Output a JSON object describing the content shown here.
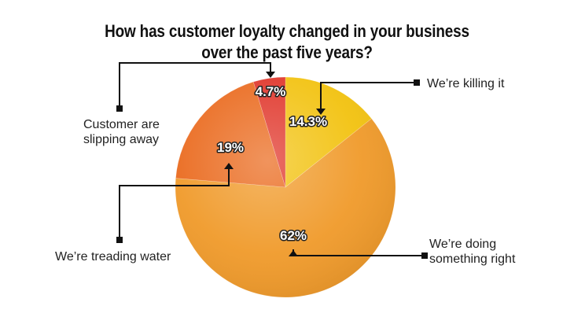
{
  "chart_data": {
    "type": "pie",
    "title_lines": [
      "How has customer loyalty changed in your business",
      "over the past five years?"
    ],
    "slices": [
      {
        "name": "We’re killing it",
        "name_lines": [
          "We’re killing it"
        ],
        "value": 14.3,
        "label": "14.3%",
        "color": "#f2c20f"
      },
      {
        "name": "We’re doing something right",
        "name_lines": [
          "We’re doing",
          "something right"
        ],
        "value": 62,
        "label": "62%",
        "color": "#f09a2a"
      },
      {
        "name": "We’re treading water",
        "name_lines": [
          "We’re treading water"
        ],
        "value": 19,
        "label": "19%",
        "color": "#ea6a1e"
      },
      {
        "name": "Customer are slipping away",
        "name_lines": [
          "Customer are",
          "slipping away"
        ],
        "value": 4.7,
        "label": "4.7%",
        "color": "#e0352a"
      }
    ],
    "start_angle": "12 o'clock",
    "direction": "clockwise",
    "legend": "callouts"
  }
}
